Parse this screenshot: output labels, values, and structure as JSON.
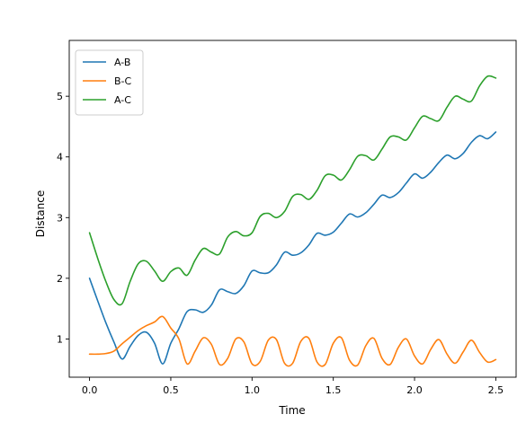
{
  "chart_data": {
    "type": "line",
    "xlabel": "Time",
    "ylabel": "Distance",
    "xlim": [
      -0.125,
      2.625
    ],
    "ylim": [
      0.37,
      5.92
    ],
    "x_ticks": [
      0.0,
      0.5,
      1.0,
      1.5,
      2.0,
      2.5
    ],
    "x_tick_labels": [
      "0.0",
      "0.5",
      "1.0",
      "1.5",
      "2.0",
      "2.5"
    ],
    "y_ticks": [
      1,
      2,
      3,
      4,
      5
    ],
    "y_tick_labels": [
      "1",
      "2",
      "3",
      "4",
      "5"
    ],
    "grid": false,
    "legend_position": "upper-left",
    "series": [
      {
        "name": "A-B",
        "color": "#1f77b4",
        "x": [
          0.0,
          0.05,
          0.1,
          0.15,
          0.2,
          0.25,
          0.3,
          0.35,
          0.4,
          0.45,
          0.5,
          0.55,
          0.6,
          0.65,
          0.7,
          0.75,
          0.8,
          0.85,
          0.9,
          0.95,
          1.0,
          1.05,
          1.1,
          1.15,
          1.2,
          1.25,
          1.3,
          1.35,
          1.4,
          1.45,
          1.5,
          1.55,
          1.6,
          1.65,
          1.7,
          1.75,
          1.8,
          1.85,
          1.9,
          1.95,
          2.0,
          2.05,
          2.1,
          2.15,
          2.2,
          2.25,
          2.3,
          2.35,
          2.4,
          2.45,
          2.5
        ],
        "values": [
          2.0,
          1.63,
          1.27,
          0.95,
          0.67,
          0.88,
          1.06,
          1.11,
          0.93,
          0.59,
          0.93,
          1.17,
          1.45,
          1.48,
          1.44,
          1.56,
          1.81,
          1.78,
          1.75,
          1.88,
          2.12,
          2.09,
          2.09,
          2.22,
          2.43,
          2.38,
          2.42,
          2.55,
          2.74,
          2.71,
          2.76,
          2.91,
          3.06,
          3.01,
          3.08,
          3.22,
          3.37,
          3.33,
          3.41,
          3.57,
          3.72,
          3.65,
          3.75,
          3.91,
          4.03,
          3.97,
          4.06,
          4.24,
          4.35,
          4.3,
          4.41
        ]
      },
      {
        "name": "B-C",
        "color": "#ff7f0e",
        "x": [
          0.0,
          0.05,
          0.1,
          0.15,
          0.2,
          0.25,
          0.3,
          0.35,
          0.4,
          0.45,
          0.5,
          0.55,
          0.6,
          0.65,
          0.7,
          0.75,
          0.8,
          0.85,
          0.9,
          0.95,
          1.0,
          1.05,
          1.1,
          1.15,
          1.2,
          1.25,
          1.3,
          1.35,
          1.4,
          1.45,
          1.5,
          1.55,
          1.6,
          1.65,
          1.7,
          1.75,
          1.8,
          1.85,
          1.9,
          1.95,
          2.0,
          2.05,
          2.1,
          2.15,
          2.2,
          2.25,
          2.3,
          2.35,
          2.4,
          2.45,
          2.5
        ],
        "values": [
          0.75,
          0.75,
          0.76,
          0.8,
          0.92,
          1.03,
          1.14,
          1.22,
          1.28,
          1.37,
          1.18,
          1.0,
          0.59,
          0.8,
          1.02,
          0.91,
          0.58,
          0.68,
          1.0,
          0.95,
          0.59,
          0.63,
          0.98,
          0.99,
          0.6,
          0.6,
          0.96,
          1.01,
          0.62,
          0.58,
          0.93,
          1.02,
          0.65,
          0.57,
          0.89,
          1.01,
          0.68,
          0.58,
          0.86,
          1.0,
          0.72,
          0.59,
          0.83,
          0.99,
          0.75,
          0.6,
          0.79,
          0.98,
          0.78,
          0.62,
          0.66
        ]
      },
      {
        "name": "A-C",
        "color": "#2ca02c",
        "x": [
          0.0,
          0.05,
          0.1,
          0.15,
          0.2,
          0.25,
          0.3,
          0.35,
          0.4,
          0.45,
          0.5,
          0.55,
          0.6,
          0.65,
          0.7,
          0.75,
          0.8,
          0.85,
          0.9,
          0.95,
          1.0,
          1.05,
          1.1,
          1.15,
          1.2,
          1.25,
          1.3,
          1.35,
          1.4,
          1.45,
          1.5,
          1.55,
          1.6,
          1.65,
          1.7,
          1.75,
          1.8,
          1.85,
          1.9,
          1.95,
          2.0,
          2.05,
          2.1,
          2.15,
          2.2,
          2.25,
          2.3,
          2.35,
          2.4,
          2.45,
          2.5
        ],
        "values": [
          2.75,
          2.33,
          1.95,
          1.65,
          1.58,
          1.95,
          2.24,
          2.28,
          2.12,
          1.95,
          2.11,
          2.17,
          2.05,
          2.3,
          2.49,
          2.43,
          2.4,
          2.68,
          2.77,
          2.7,
          2.75,
          3.02,
          3.07,
          3.0,
          3.1,
          3.35,
          3.38,
          3.3,
          3.45,
          3.69,
          3.7,
          3.62,
          3.79,
          4.01,
          4.02,
          3.95,
          4.13,
          4.33,
          4.33,
          4.28,
          4.48,
          4.67,
          4.63,
          4.6,
          4.82,
          5.0,
          4.95,
          4.92,
          5.17,
          5.33,
          5.3
        ]
      }
    ]
  }
}
